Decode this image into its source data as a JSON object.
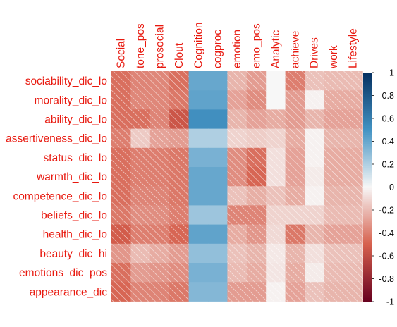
{
  "chart_data": {
    "type": "heatmap",
    "title": "",
    "xlabel": "",
    "ylabel": "",
    "columns": [
      "Social",
      "tone_pos",
      "prosocial",
      "Clout",
      "Cognition",
      "cogproc",
      "emotion",
      "emo_pos",
      "Analytic",
      "achieve",
      "Drives",
      "work",
      "Lifestyle"
    ],
    "rows": [
      "sociability_dic_lo",
      "morality_dic_lo",
      "ability_dic_lo",
      "assertiveness_dic_lo",
      "status_dic_lo",
      "warmth_dic_lo",
      "competence_dic_lo",
      "beliefs_dic_lo",
      "health_dic_lo",
      "beauty_dic_hi",
      "emotions_dic_pos",
      "appearance_dic"
    ],
    "values": [
      [
        -0.45,
        -0.38,
        -0.37,
        -0.45,
        0.4,
        0.4,
        -0.22,
        -0.3,
        0.0,
        -0.4,
        -0.18,
        -0.2,
        -0.2
      ],
      [
        -0.45,
        -0.37,
        -0.37,
        -0.42,
        0.42,
        0.42,
        -0.28,
        -0.35,
        0.0,
        -0.3,
        -0.02,
        -0.25,
        -0.25
      ],
      [
        -0.45,
        -0.45,
        -0.38,
        -0.55,
        0.52,
        0.52,
        -0.22,
        -0.28,
        -0.25,
        -0.3,
        -0.22,
        -0.28,
        -0.28
      ],
      [
        -0.4,
        -0.15,
        -0.28,
        -0.3,
        0.2,
        0.2,
        -0.12,
        -0.14,
        -0.12,
        -0.25,
        -0.02,
        -0.22,
        -0.22
      ],
      [
        -0.45,
        -0.4,
        -0.4,
        -0.42,
        0.35,
        0.35,
        -0.35,
        -0.45,
        -0.08,
        -0.28,
        -0.02,
        -0.25,
        -0.25
      ],
      [
        -0.45,
        -0.4,
        -0.4,
        -0.42,
        0.4,
        0.4,
        -0.35,
        -0.48,
        -0.08,
        -0.28,
        -0.04,
        -0.25,
        -0.25
      ],
      [
        -0.45,
        -0.38,
        -0.38,
        -0.42,
        0.4,
        0.4,
        -0.18,
        -0.24,
        -0.18,
        -0.25,
        -0.02,
        -0.22,
        -0.22
      ],
      [
        -0.42,
        -0.35,
        -0.35,
        -0.4,
        0.25,
        0.25,
        -0.38,
        -0.38,
        -0.12,
        -0.12,
        -0.12,
        -0.2,
        -0.2
      ],
      [
        -0.52,
        -0.4,
        -0.4,
        -0.48,
        0.42,
        0.42,
        -0.25,
        -0.32,
        -0.1,
        -0.42,
        -0.22,
        -0.28,
        -0.28
      ],
      [
        -0.32,
        -0.2,
        -0.25,
        -0.3,
        0.28,
        0.28,
        -0.18,
        -0.22,
        -0.05,
        -0.22,
        -0.08,
        -0.18,
        -0.18
      ],
      [
        -0.45,
        -0.3,
        -0.32,
        -0.35,
        0.35,
        0.35,
        -0.2,
        -0.25,
        -0.06,
        -0.25,
        -0.04,
        -0.2,
        -0.2
      ],
      [
        -0.48,
        -0.38,
        -0.38,
        -0.42,
        0.32,
        0.32,
        -0.3,
        -0.3,
        -0.02,
        -0.28,
        -0.18,
        -0.22,
        -0.22
      ]
    ],
    "colorbar": {
      "ticks": [
        "1",
        "0.8",
        "0.6",
        "0.4",
        "0.2",
        "0",
        "-0.2",
        "-0.4",
        "-0.6",
        "-0.8",
        "-1"
      ],
      "min": -1,
      "max": 1
    },
    "color_scale": {
      "neg_end": "#67001f",
      "neg_mid": "#d6604d",
      "neutral": "#f7f7f7",
      "pos_mid": "#4393c3",
      "pos_end": "#053061"
    },
    "hatch_negative": true,
    "grid": false,
    "legend_position": "right"
  }
}
